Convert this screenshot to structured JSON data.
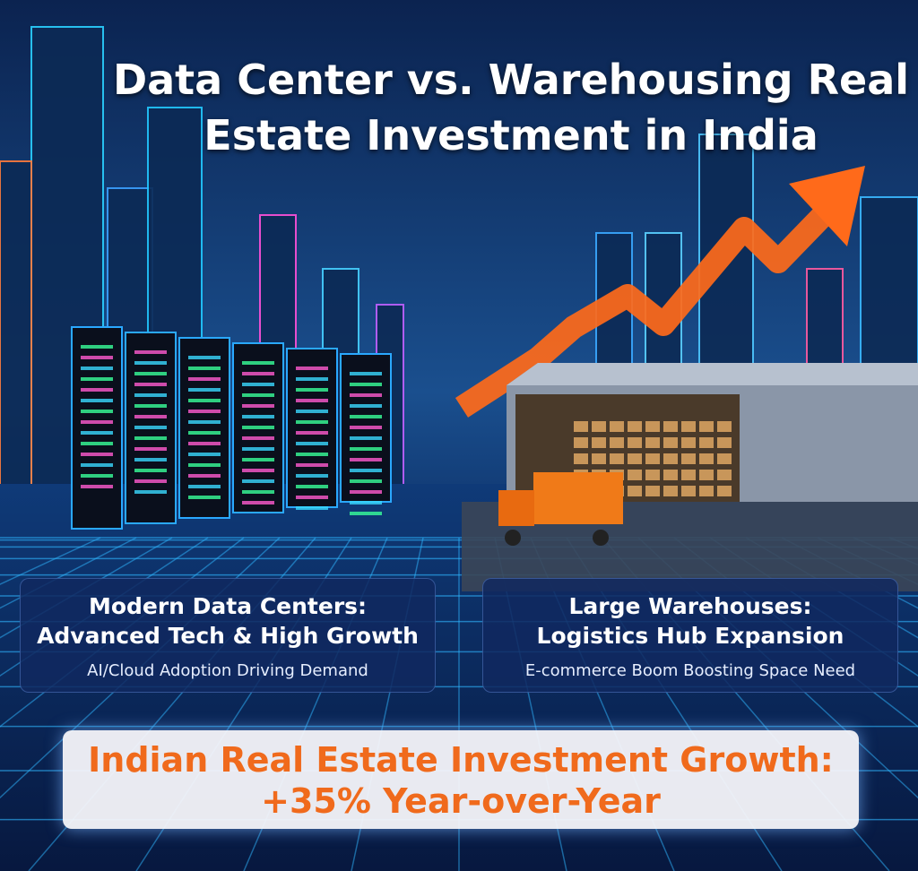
{
  "header": {
    "title_lines": [
      "Data Center vs. Warehousing Real",
      "Estate Investment in India"
    ]
  },
  "panels": [
    {
      "heading_lines": [
        "Modern Data Centers:",
        "Advanced Tech & High Growth"
      ],
      "caption": "AI/Cloud Adoption Driving Demand"
    },
    {
      "heading_lines": [
        "Large Warehouses:",
        "Logistics Hub Expansion"
      ],
      "caption": "E-commerce Boom Boosting Space Need"
    }
  ],
  "banner": {
    "lines": [
      "Indian Real Estate Investment Growth:",
      "+35% Year-over-Year"
    ]
  }
}
